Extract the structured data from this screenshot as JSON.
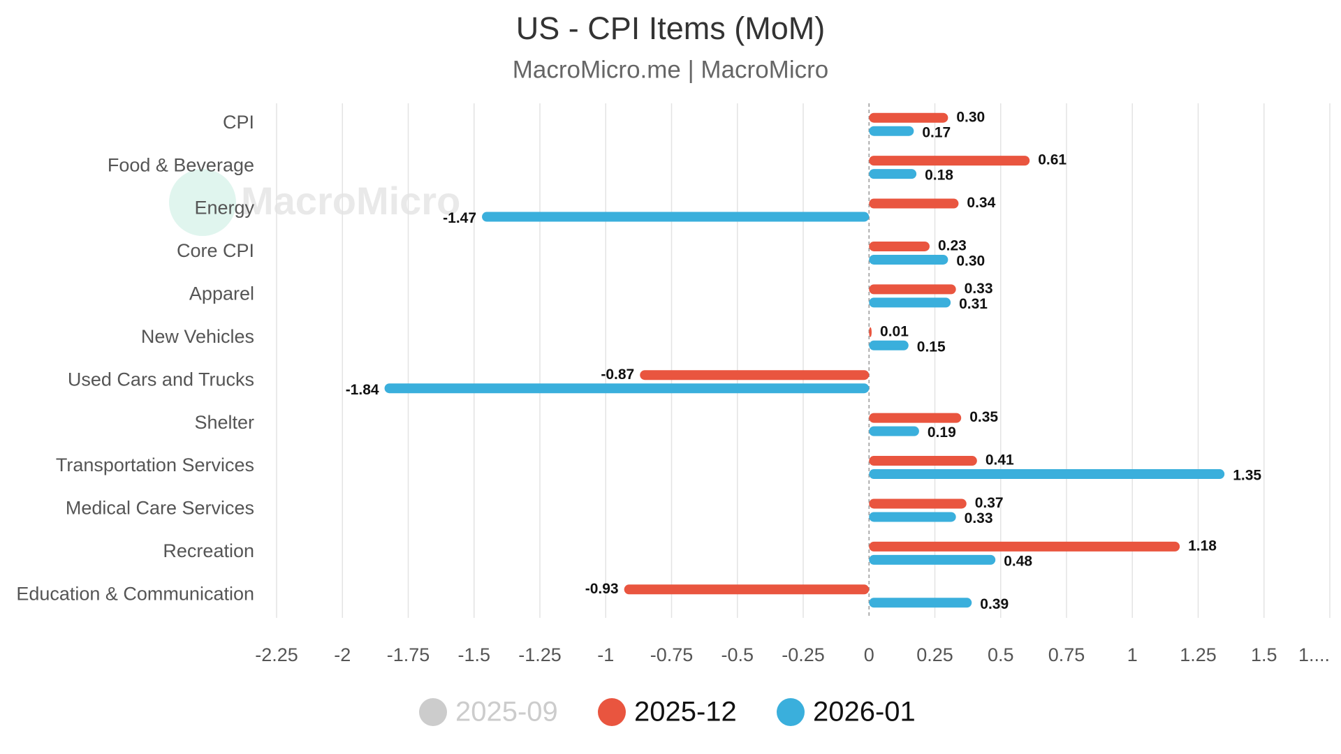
{
  "chart_data": {
    "type": "hbar",
    "title": "US - CPI Items (MoM)",
    "subtitle": "MacroMicro.me | MacroMicro",
    "watermark": "MacroMicro",
    "categories": [
      "CPI",
      "Food & Beverage",
      "Energy",
      "Core CPI",
      "Apparel",
      "New Vehicles",
      "Used Cars and Trucks",
      "Shelter",
      "Transportation Services",
      "Medical Care Services",
      "Recreation",
      "Education & Communication"
    ],
    "series": [
      {
        "name": "2025-09",
        "color": "#cccccc",
        "visible": false,
        "values": [
          null,
          null,
          null,
          null,
          null,
          null,
          null,
          null,
          null,
          null,
          null,
          null
        ]
      },
      {
        "name": "2025-12",
        "color": "#e9553f",
        "visible": true,
        "values": [
          0.3,
          0.61,
          0.34,
          0.23,
          0.33,
          0.01,
          -0.87,
          0.35,
          0.41,
          0.37,
          1.18,
          -0.93
        ],
        "value_labels": [
          "0.30",
          "0.61",
          "0.34",
          "0.23",
          "0.33",
          "0.01",
          "-0.87",
          "0.35",
          "0.41",
          "0.37",
          "1.18",
          "-0.93"
        ]
      },
      {
        "name": "2026-01",
        "color": "#3aafdc",
        "visible": true,
        "values": [
          0.17,
          0.18,
          -1.47,
          0.3,
          0.31,
          0.15,
          -1.84,
          0.19,
          1.35,
          0.33,
          0.48,
          0.39
        ],
        "value_labels": [
          "0.17",
          "0.18",
          "-1.47",
          "0.30",
          "0.31",
          "0.15",
          "-1.84",
          "0.19",
          "1.35",
          "0.33",
          "0.48",
          "0.39"
        ]
      }
    ],
    "xlim": [
      -2.25,
      1.75
    ],
    "xticks": [
      -2.25,
      -2,
      -1.75,
      -1.5,
      -1.25,
      -1,
      -0.75,
      -0.5,
      -0.25,
      0,
      0.25,
      0.5,
      0.75,
      1,
      1.25,
      1.5,
      {
        "value": 1.75,
        "label": "1...."
      }
    ],
    "grid": true
  }
}
